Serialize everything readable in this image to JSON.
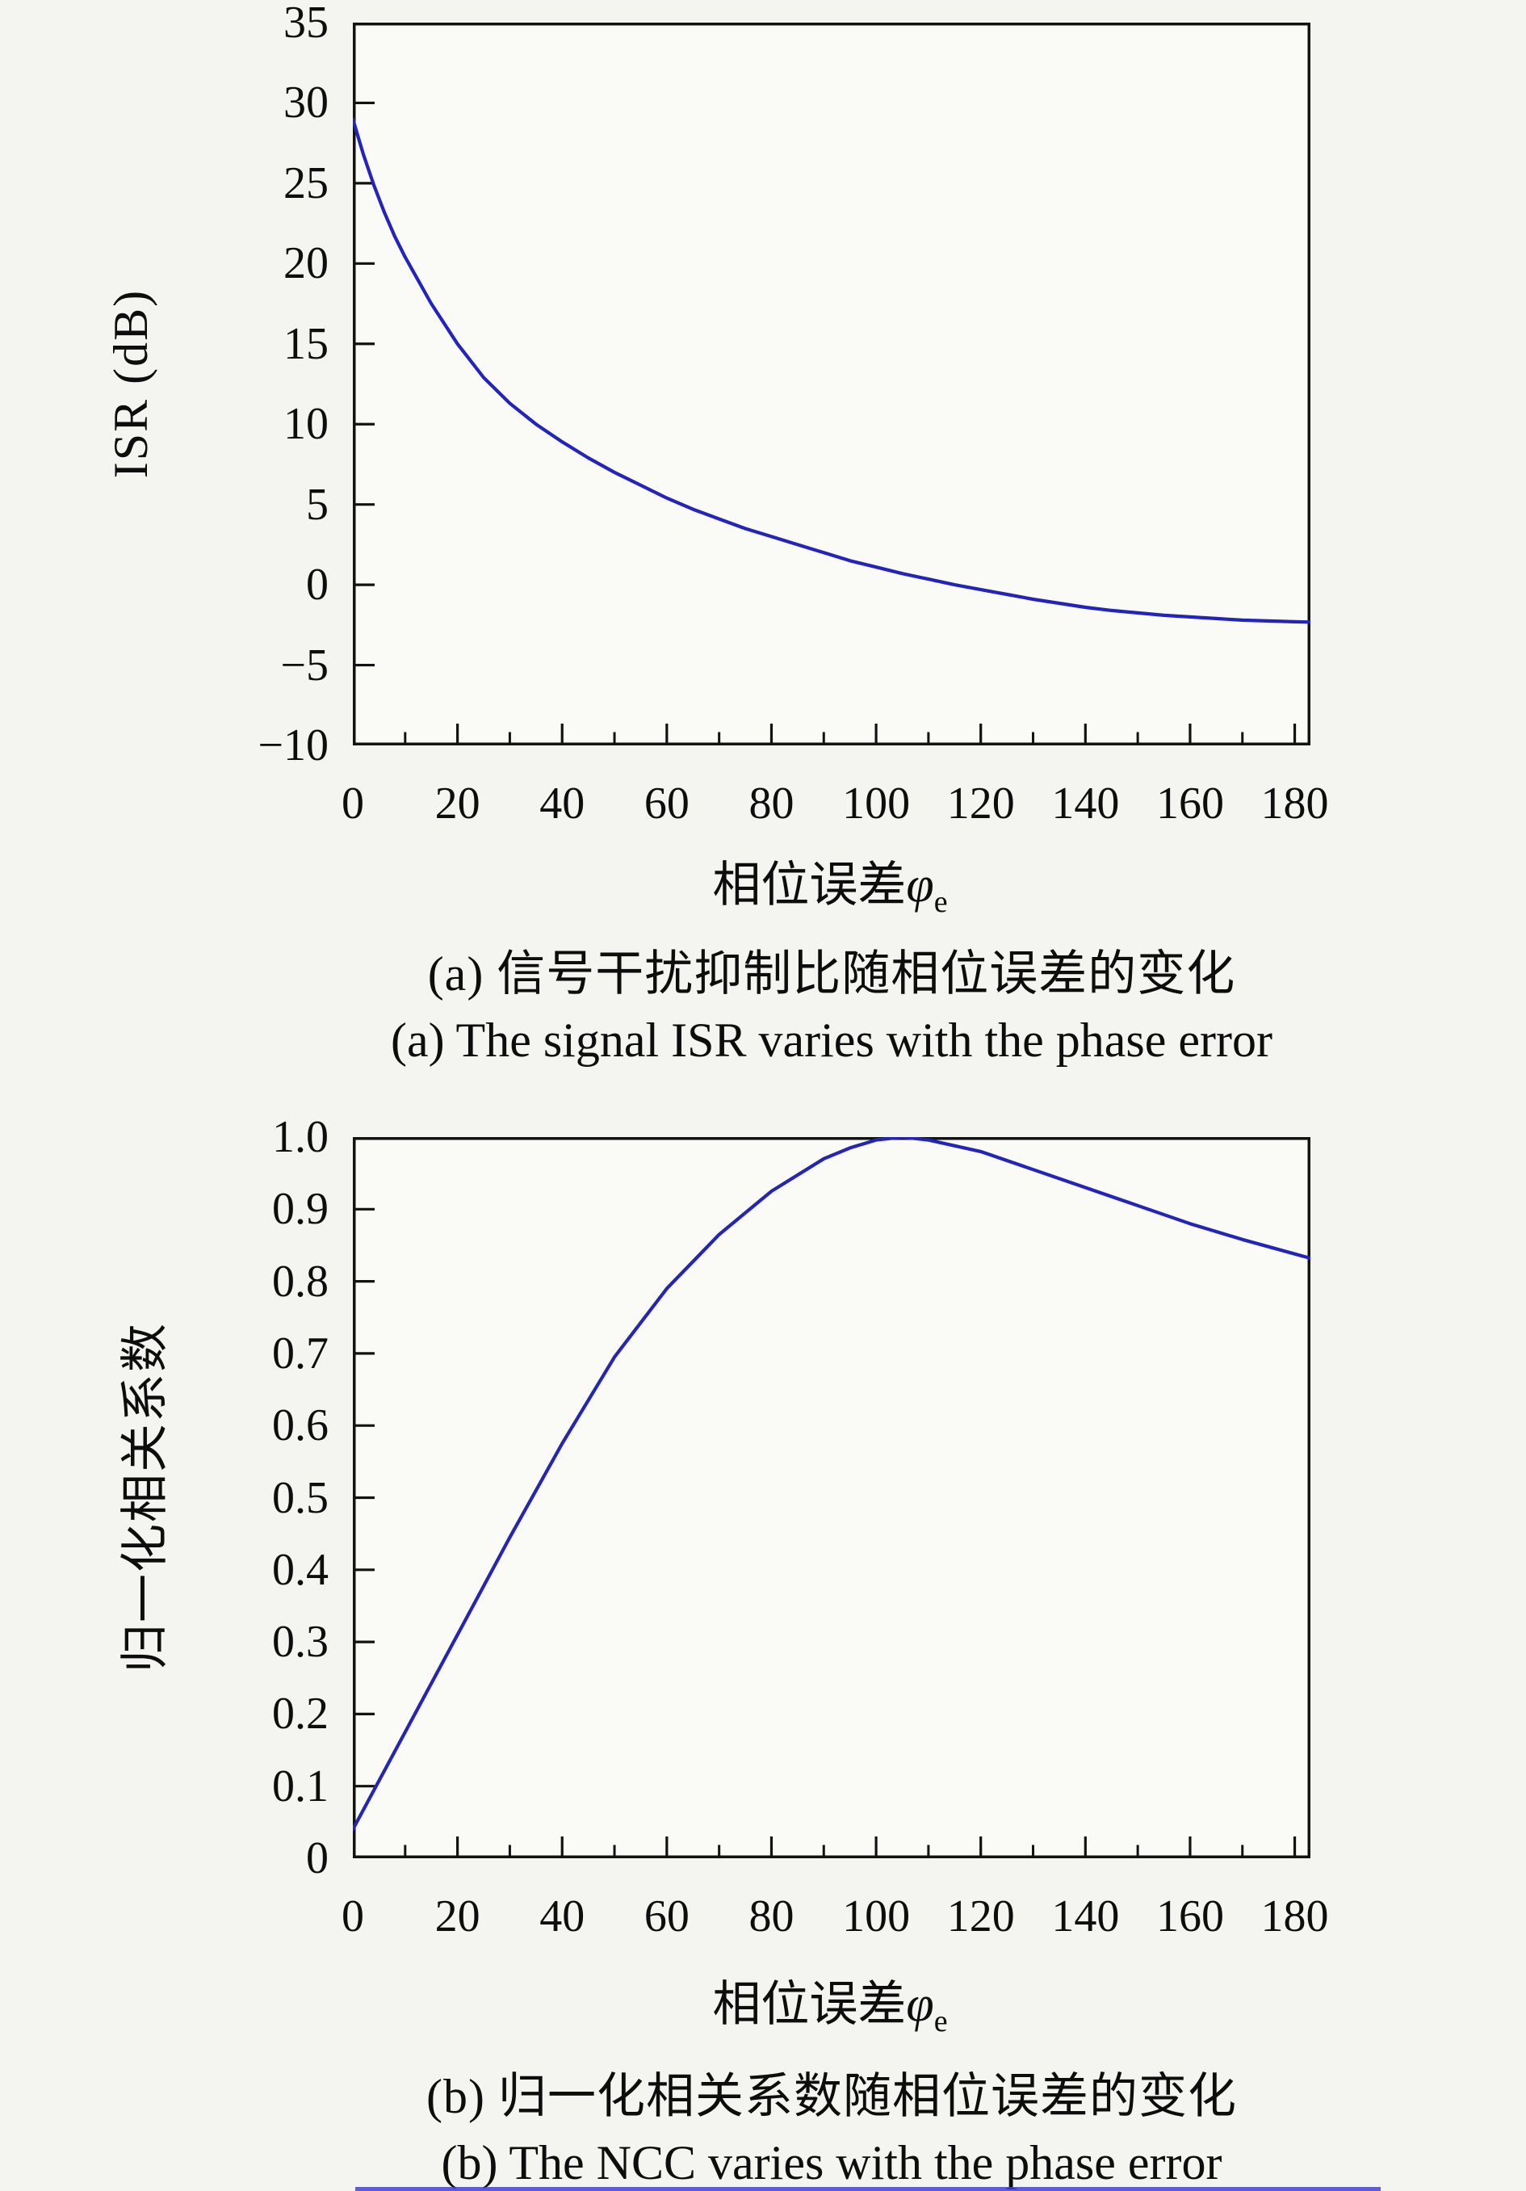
{
  "figure": {
    "background": "#f4f4f1",
    "plot_fill": "#fafaf7",
    "bottom_edge_artifact_color": "#4242d2"
  },
  "chart_data": [
    {
      "type": "line",
      "panel": "a",
      "ylabel": "ISR (dB)",
      "xlabel_text": "相位误差",
      "xlabel_symbol": "φ",
      "xlabel_subscript": "e",
      "caption_cn": "(a) 信号干扰抑制比随相位误差的变化",
      "caption_en": "(a) The signal ISR varies with the phase error",
      "xlim": [
        0,
        183
      ],
      "ylim": [
        -10,
        35
      ],
      "grid": false,
      "legend": "none",
      "x_tick_values": [
        0,
        20,
        40,
        60,
        80,
        100,
        120,
        140,
        160,
        180
      ],
      "x_tick_labels": [
        "0",
        "20",
        "40",
        "60",
        "80",
        "100",
        "120",
        "140",
        "160",
        "180"
      ],
      "x_minor_tick_values": [
        10,
        30,
        50,
        70,
        90,
        110,
        130,
        150,
        170
      ],
      "y_tick_values": [
        35,
        30,
        25,
        20,
        15,
        10,
        5,
        0,
        -5,
        -10
      ],
      "y_tick_labels": [
        "35",
        "30",
        "25",
        "20",
        "15",
        "10",
        "5",
        "0",
        "−5",
        "−10"
      ],
      "line_color": "#2323be",
      "frame_color": "#121212",
      "x": [
        0,
        2,
        4,
        6,
        8,
        10,
        15,
        20,
        25,
        30,
        35,
        40,
        45,
        50,
        55,
        60,
        65,
        70,
        75,
        80,
        85,
        90,
        95,
        100,
        105,
        110,
        115,
        120,
        125,
        130,
        135,
        140,
        145,
        150,
        155,
        160,
        165,
        170,
        175,
        180,
        183
      ],
      "y": [
        29.0,
        26.8,
        24.9,
        23.2,
        21.7,
        20.4,
        17.5,
        15.0,
        12.9,
        11.3,
        10.0,
        8.9,
        7.9,
        7.0,
        6.2,
        5.4,
        4.7,
        4.1,
        3.5,
        3.0,
        2.5,
        2.0,
        1.5,
        1.1,
        0.7,
        0.35,
        0.0,
        -0.3,
        -0.6,
        -0.9,
        -1.15,
        -1.4,
        -1.6,
        -1.75,
        -1.9,
        -2.0,
        -2.1,
        -2.2,
        -2.25,
        -2.3,
        -2.32
      ]
    },
    {
      "type": "line",
      "panel": "b",
      "ylabel": "归一化相关系数",
      "xlabel_text": "相位误差",
      "xlabel_symbol": "φ",
      "xlabel_subscript": "e",
      "caption_cn": "(b) 归一化相关系数随相位误差的变化",
      "caption_en": "(b) The NCC varies with the phase error",
      "xlim": [
        0,
        183
      ],
      "ylim": [
        0,
        1
      ],
      "grid": false,
      "legend": "none",
      "x_tick_values": [
        0,
        20,
        40,
        60,
        80,
        100,
        120,
        140,
        160,
        180
      ],
      "x_tick_labels": [
        "0",
        "20",
        "40",
        "60",
        "80",
        "100",
        "120",
        "140",
        "160",
        "180"
      ],
      "x_minor_tick_values": [
        10,
        30,
        50,
        70,
        90,
        110,
        130,
        150,
        170
      ],
      "y_tick_values": [
        1.0,
        0.9,
        0.8,
        0.7,
        0.6,
        0.5,
        0.4,
        0.3,
        0.2,
        0.1,
        0
      ],
      "y_tick_labels": [
        "1.0",
        "0.9",
        "0.8",
        "0.7",
        "0.6",
        "0.5",
        "0.4",
        "0.3",
        "0.2",
        "0.1",
        "0"
      ],
      "line_color": "#2323be",
      "frame_color": "#121212",
      "x": [
        0,
        10,
        20,
        30,
        40,
        50,
        60,
        70,
        80,
        90,
        95,
        100,
        105,
        110,
        120,
        130,
        140,
        150,
        160,
        170,
        180,
        183
      ],
      "y": [
        0.04,
        0.175,
        0.31,
        0.445,
        0.575,
        0.695,
        0.79,
        0.865,
        0.925,
        0.97,
        0.985,
        0.996,
        1.0,
        0.996,
        0.98,
        0.955,
        0.93,
        0.905,
        0.88,
        0.858,
        0.838,
        0.832
      ]
    }
  ]
}
